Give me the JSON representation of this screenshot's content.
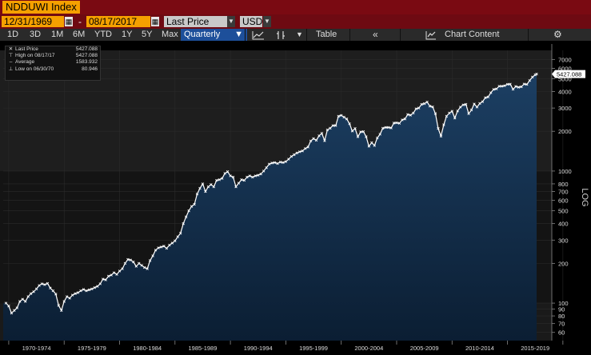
{
  "header": {
    "ticker": "NDDUWI Index"
  },
  "controls": {
    "start_date": "12/31/1969",
    "dash": "-",
    "end_date": "08/17/2017",
    "field": "Last Price",
    "currency": "USD"
  },
  "toolbar": {
    "ranges": [
      "1D",
      "3D",
      "1M",
      "6M",
      "YTD",
      "1Y",
      "5Y",
      "Max"
    ],
    "frequency": "Quarterly",
    "table_label": "Table",
    "back_label": "«",
    "chart_content_label": "Chart Content"
  },
  "legend": {
    "rows": [
      {
        "label": "Last Price",
        "value": "5427.088"
      },
      {
        "label": "High on 08/17/17",
        "value": "5427.088"
      },
      {
        "label": "Average",
        "value": "1583.932"
      },
      {
        "label": "Low on 06/30/70",
        "value": "80.946"
      }
    ]
  },
  "chart_data": {
    "type": "area",
    "x_tick_labels": [
      "1970-1974",
      "1975-1979",
      "1980-1984",
      "1985-1989",
      "1990-1994",
      "1995-1999",
      "2000-2004",
      "2005-2009",
      "2010-2014",
      "2015-2019"
    ],
    "y_scale": "log",
    "y_ticks": [
      60,
      70,
      80,
      90,
      100,
      200,
      300,
      400,
      500,
      600,
      700,
      800,
      1000,
      2000,
      3000,
      4000,
      5000,
      6000,
      7000
    ],
    "ylabel": "LOG",
    "last_value_label": "5427.088",
    "colors": {
      "fill_top": "#1c3f63",
      "fill_bottom": "#0b1e33",
      "line": "#ffffff",
      "axis_text": "#dddddd"
    },
    "series": [
      {
        "values": [
          [
            1969.75,
            100
          ],
          [
            1970.0,
            95
          ],
          [
            1970.25,
            84
          ],
          [
            1970.5,
            88
          ],
          [
            1970.75,
            92
          ],
          [
            1971.0,
            103
          ],
          [
            1971.25,
            107
          ],
          [
            1971.5,
            103
          ],
          [
            1971.75,
            112
          ],
          [
            1972.0,
            118
          ],
          [
            1972.25,
            122
          ],
          [
            1972.5,
            128
          ],
          [
            1972.75,
            136
          ],
          [
            1973.0,
            140
          ],
          [
            1973.25,
            138
          ],
          [
            1973.5,
            141
          ],
          [
            1973.75,
            130
          ],
          [
            1974.0,
            124
          ],
          [
            1974.25,
            117
          ],
          [
            1974.5,
            96
          ],
          [
            1974.75,
            88
          ],
          [
            1975.0,
            103
          ],
          [
            1975.25,
            112
          ],
          [
            1975.5,
            109
          ],
          [
            1975.75,
            115
          ],
          [
            1976.0,
            118
          ],
          [
            1976.25,
            120
          ],
          [
            1976.5,
            124
          ],
          [
            1976.75,
            127
          ],
          [
            1977.0,
            124
          ],
          [
            1977.25,
            126
          ],
          [
            1977.5,
            128
          ],
          [
            1977.75,
            131
          ],
          [
            1978.0,
            134
          ],
          [
            1978.25,
            140
          ],
          [
            1978.5,
            152
          ],
          [
            1978.75,
            150
          ],
          [
            1979.0,
            160
          ],
          [
            1979.25,
            163
          ],
          [
            1979.5,
            170
          ],
          [
            1979.75,
            165
          ],
          [
            1980.0,
            175
          ],
          [
            1980.25,
            182
          ],
          [
            1980.5,
            200
          ],
          [
            1980.75,
            214
          ],
          [
            1981.0,
            212
          ],
          [
            1981.25,
            205
          ],
          [
            1981.5,
            190
          ],
          [
            1981.75,
            200
          ],
          [
            1982.0,
            193
          ],
          [
            1982.25,
            186
          ],
          [
            1982.5,
            182
          ],
          [
            1982.75,
            210
          ],
          [
            1983.0,
            228
          ],
          [
            1983.25,
            252
          ],
          [
            1983.5,
            262
          ],
          [
            1983.75,
            266
          ],
          [
            1984.0,
            270
          ],
          [
            1984.25,
            260
          ],
          [
            1984.5,
            275
          ],
          [
            1984.75,
            285
          ],
          [
            1985.0,
            296
          ],
          [
            1985.25,
            318
          ],
          [
            1985.5,
            338
          ],
          [
            1985.75,
            400
          ],
          [
            1986.0,
            450
          ],
          [
            1986.25,
            500
          ],
          [
            1986.5,
            540
          ],
          [
            1986.75,
            560
          ],
          [
            1987.0,
            670
          ],
          [
            1987.25,
            740
          ],
          [
            1987.5,
            800
          ],
          [
            1987.75,
            700
          ],
          [
            1988.0,
            760
          ],
          [
            1988.25,
            790
          ],
          [
            1988.5,
            760
          ],
          [
            1988.75,
            850
          ],
          [
            1989.0,
            860
          ],
          [
            1989.25,
            880
          ],
          [
            1989.5,
            960
          ],
          [
            1989.75,
            990
          ],
          [
            1990.0,
            920
          ],
          [
            1990.25,
            900
          ],
          [
            1990.5,
            760
          ],
          [
            1990.75,
            810
          ],
          [
            1991.0,
            860
          ],
          [
            1991.25,
            850
          ],
          [
            1991.5,
            900
          ],
          [
            1991.75,
            920
          ],
          [
            1992.0,
            900
          ],
          [
            1992.25,
            920
          ],
          [
            1992.5,
            930
          ],
          [
            1992.75,
            950
          ],
          [
            1993.0,
            1000
          ],
          [
            1993.25,
            1060
          ],
          [
            1993.5,
            1130
          ],
          [
            1993.75,
            1150
          ],
          [
            1994.0,
            1160
          ],
          [
            1994.25,
            1140
          ],
          [
            1994.5,
            1170
          ],
          [
            1994.75,
            1160
          ],
          [
            1995.0,
            1180
          ],
          [
            1995.25,
            1230
          ],
          [
            1995.5,
            1290
          ],
          [
            1995.75,
            1330
          ],
          [
            1996.0,
            1370
          ],
          [
            1996.25,
            1400
          ],
          [
            1996.5,
            1420
          ],
          [
            1996.75,
            1480
          ],
          [
            1997.0,
            1520
          ],
          [
            1997.25,
            1690
          ],
          [
            1997.5,
            1760
          ],
          [
            1997.75,
            1710
          ],
          [
            1998.0,
            1850
          ],
          [
            1998.25,
            1930
          ],
          [
            1998.5,
            1700
          ],
          [
            1998.75,
            2050
          ],
          [
            1999.0,
            2110
          ],
          [
            1999.25,
            2210
          ],
          [
            1999.5,
            2210
          ],
          [
            1999.75,
            2600
          ],
          [
            2000.0,
            2640
          ],
          [
            2000.25,
            2560
          ],
          [
            2000.5,
            2480
          ],
          [
            2000.75,
            2280
          ],
          [
            2001.0,
            2010
          ],
          [
            2001.25,
            2100
          ],
          [
            2001.5,
            1820
          ],
          [
            2001.75,
            1980
          ],
          [
            2002.0,
            1990
          ],
          [
            2002.25,
            1820
          ],
          [
            2002.5,
            1540
          ],
          [
            2002.75,
            1640
          ],
          [
            2003.0,
            1560
          ],
          [
            2003.25,
            1780
          ],
          [
            2003.5,
            1900
          ],
          [
            2003.75,
            2110
          ],
          [
            2004.0,
            2140
          ],
          [
            2004.25,
            2140
          ],
          [
            2004.5,
            2120
          ],
          [
            2004.75,
            2310
          ],
          [
            2005.0,
            2320
          ],
          [
            2005.25,
            2300
          ],
          [
            2005.5,
            2440
          ],
          [
            2005.75,
            2480
          ],
          [
            2006.0,
            2680
          ],
          [
            2006.25,
            2650
          ],
          [
            2006.5,
            2750
          ],
          [
            2006.75,
            2960
          ],
          [
            2007.0,
            3000
          ],
          [
            2007.25,
            3200
          ],
          [
            2007.5,
            3240
          ],
          [
            2007.75,
            3330
          ],
          [
            2008.0,
            3100
          ],
          [
            2008.25,
            3060
          ],
          [
            2008.5,
            2720
          ],
          [
            2008.75,
            2100
          ],
          [
            2009.0,
            1840
          ],
          [
            2009.25,
            2240
          ],
          [
            2009.5,
            2600
          ],
          [
            2009.75,
            2750
          ],
          [
            2010.0,
            2840
          ],
          [
            2010.25,
            2520
          ],
          [
            2010.5,
            2850
          ],
          [
            2010.75,
            3050
          ],
          [
            2011.0,
            3170
          ],
          [
            2011.25,
            3200
          ],
          [
            2011.5,
            2720
          ],
          [
            2011.75,
            2900
          ],
          [
            2012.0,
            3220
          ],
          [
            2012.25,
            3050
          ],
          [
            2012.5,
            3250
          ],
          [
            2012.75,
            3350
          ],
          [
            2013.0,
            3590
          ],
          [
            2013.25,
            3640
          ],
          [
            2013.5,
            3920
          ],
          [
            2013.75,
            4150
          ],
          [
            2014.0,
            4190
          ],
          [
            2014.25,
            4390
          ],
          [
            2014.5,
            4390
          ],
          [
            2014.75,
            4430
          ],
          [
            2015.0,
            4540
          ],
          [
            2015.25,
            4550
          ],
          [
            2015.5,
            4160
          ],
          [
            2015.75,
            4370
          ],
          [
            2016.0,
            4310
          ],
          [
            2016.25,
            4350
          ],
          [
            2016.5,
            4560
          ],
          [
            2016.75,
            4530
          ],
          [
            2017.0,
            4850
          ],
          [
            2017.25,
            5150
          ],
          [
            2017.5,
            5350
          ],
          [
            2017.63,
            5427.088
          ]
        ]
      }
    ]
  }
}
